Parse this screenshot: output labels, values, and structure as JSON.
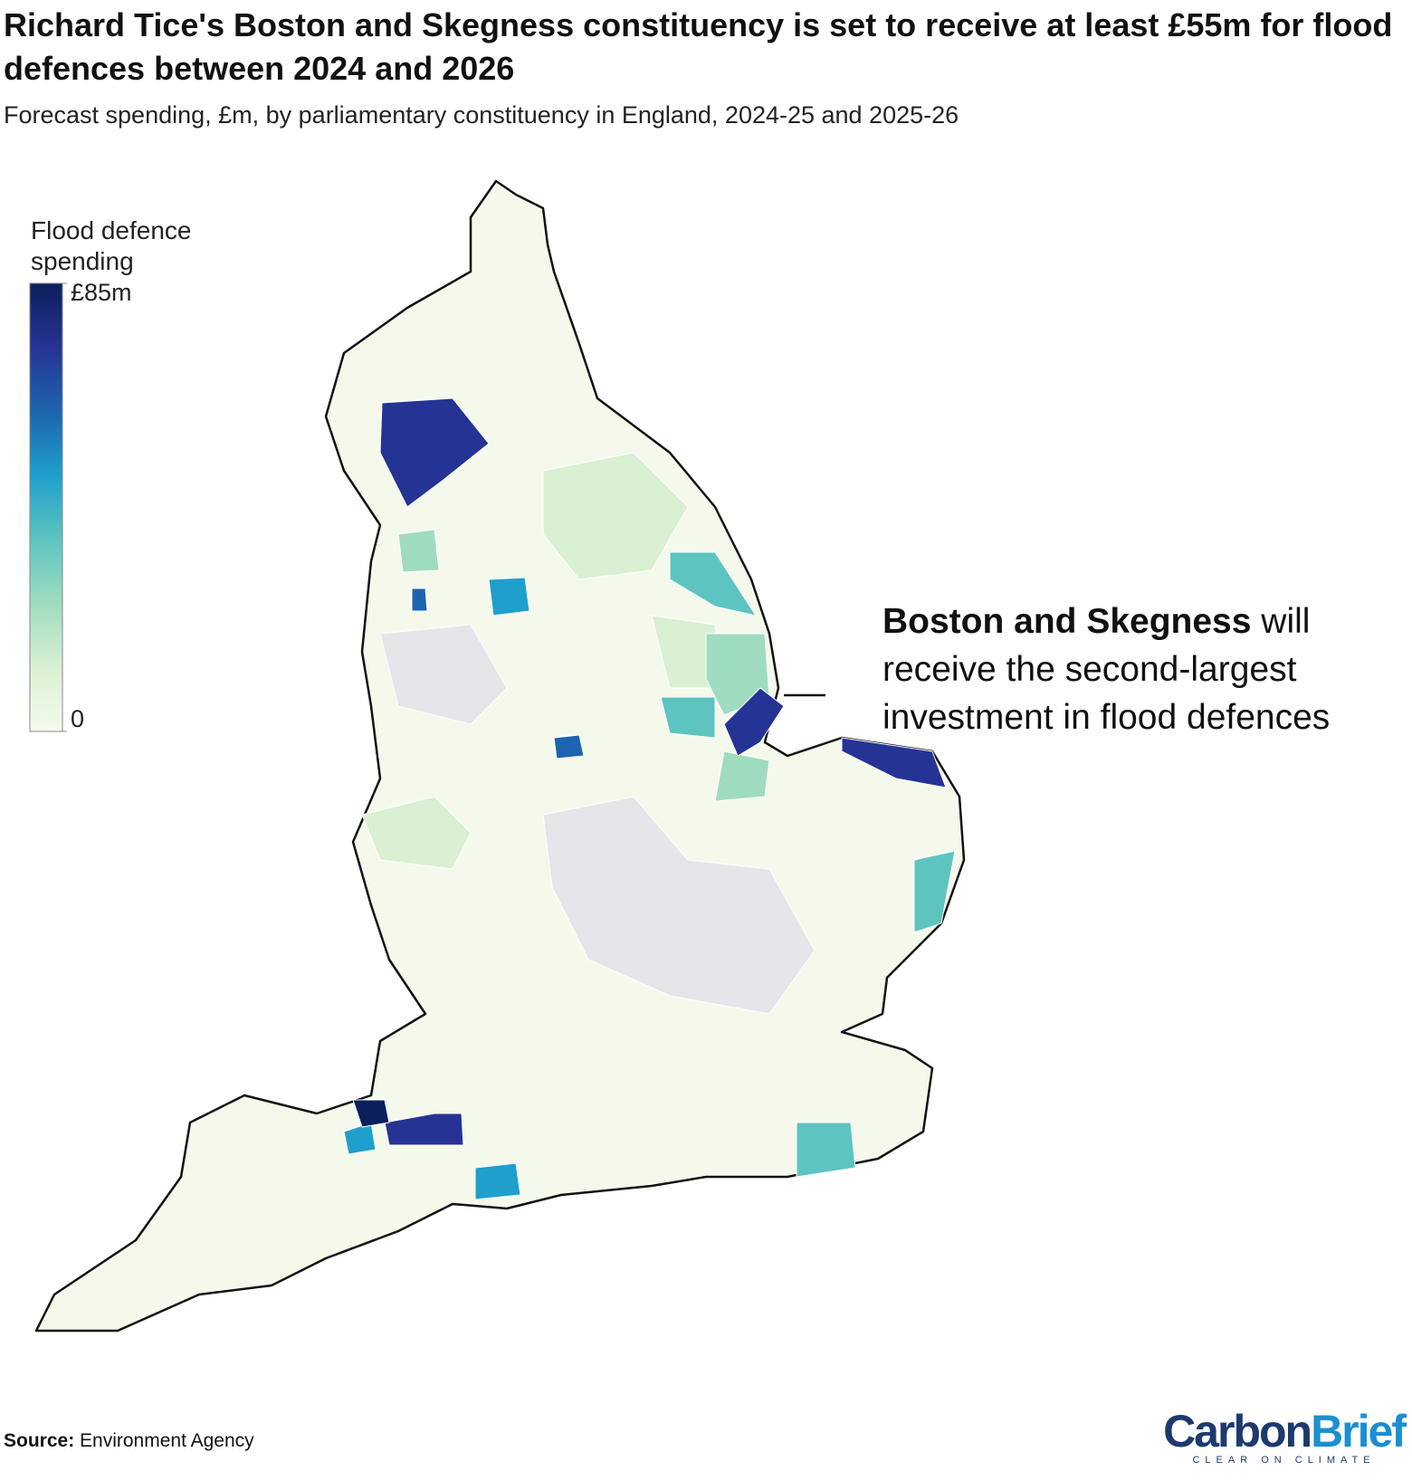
{
  "title": "Richard Tice's Boston and Skegness constituency is set to receive at least £55m for flood defences between 2024 and 2026",
  "subtitle": "Forecast spending, £m, by parliamentary constituency in England, 2024-25 and 2025-26",
  "chart_data": {
    "type": "choropleth",
    "legend": {
      "title": "Flood defence spending",
      "colors": [
        "#f5fbee",
        "#d9f0d3",
        "#9fdcbf",
        "#5ec4c0",
        "#1f9fcc",
        "#1c64ad",
        "#253494",
        "#0b1f5c"
      ],
      "range": [
        0,
        85
      ],
      "ticks": [
        0,
        {
          "value": 85,
          "label": "£85m"
        }
      ]
    }
  },
  "annotation": {
    "bold": "Boston and Skegness",
    "text": "will receive the second-largest investment in flood defences"
  },
  "source": {
    "label": "Source:",
    "text": "Environment Agency"
  },
  "logo": {
    "first": "Carbon",
    "second": "Brief",
    "tagline": "CLEAR ON CLIMATE"
  }
}
